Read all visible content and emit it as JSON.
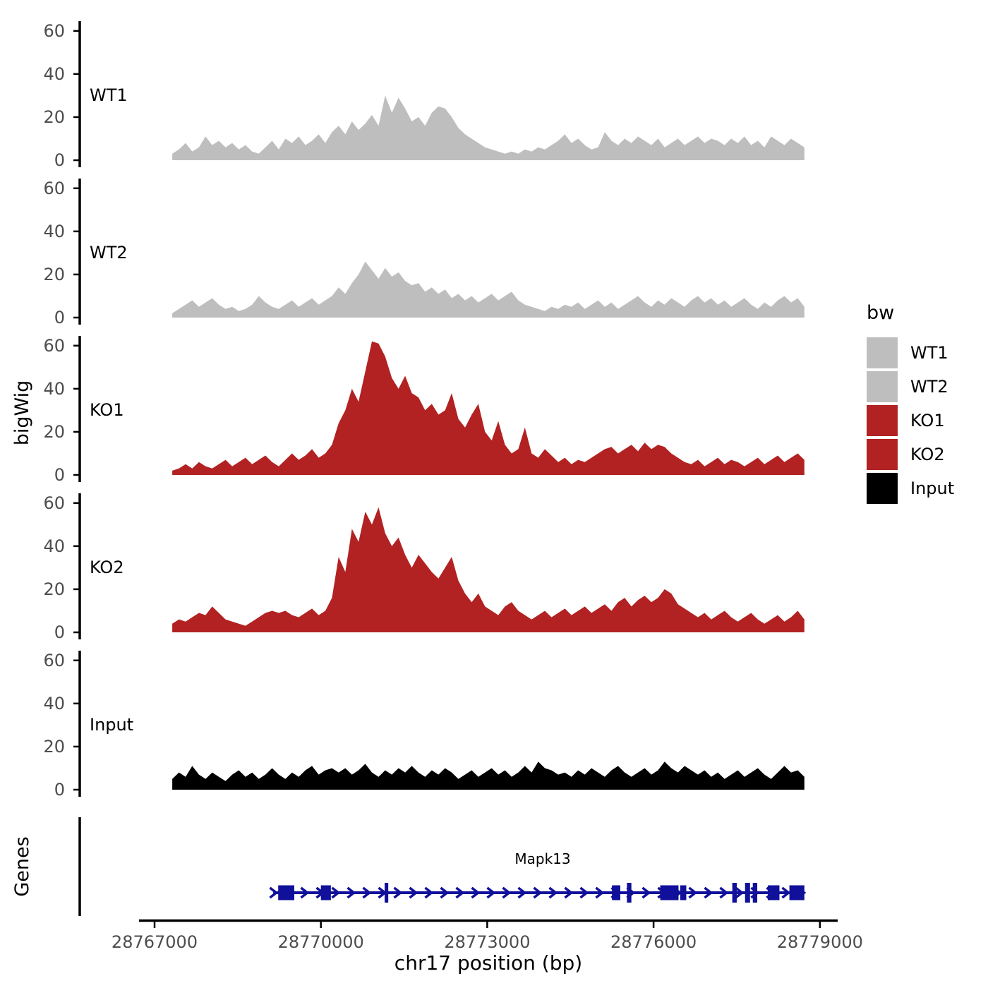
{
  "figure": {
    "y_axis_title": "bigWig",
    "genes_axis_title": "Genes",
    "x_axis_title": "chr17 position (bp)"
  },
  "legend": {
    "title": "bw",
    "items": [
      {
        "label": "WT1",
        "color": "#BEBEBE"
      },
      {
        "label": "WT2",
        "color": "#BEBEBE"
      },
      {
        "label": "KO1",
        "color": "#B22222"
      },
      {
        "label": "KO2",
        "color": "#B22222"
      },
      {
        "label": "Input",
        "color": "#000000"
      }
    ]
  },
  "chart_data": {
    "type": "area",
    "title": "",
    "xlabel": "chr17 position (bp)",
    "ylabel": "bigWig",
    "x_axis": {
      "chrom": "chr17",
      "start_bp": 28767320,
      "step_bp": 120,
      "n_points": 96,
      "ticks": [
        28767000,
        28770000,
        28773000,
        28776000,
        28779000
      ],
      "tick_labels": [
        "28767000",
        "28770000",
        "28773000",
        "28776000",
        "28779000"
      ],
      "range": [
        28766700,
        28779300
      ]
    },
    "y_axis": {
      "ticks": [
        0,
        20,
        40,
        60
      ],
      "tick_labels": [
        "0",
        "20",
        "40",
        "60"
      ],
      "ylim": [
        0,
        64
      ]
    },
    "series": [
      {
        "name": "WT1",
        "color": "#BEBEBE",
        "values": [
          3,
          5,
          8,
          4,
          6,
          11,
          7,
          9,
          6,
          8,
          5,
          7,
          4,
          3,
          6,
          9,
          5,
          10,
          8,
          11,
          7,
          9,
          12,
          8,
          13,
          16,
          12,
          18,
          14,
          17,
          21,
          16,
          30,
          22,
          29,
          24,
          18,
          20,
          16,
          22,
          25,
          24,
          20,
          15,
          12,
          10,
          8,
          6,
          5,
          4,
          3,
          4,
          3,
          5,
          4,
          6,
          5,
          7,
          9,
          12,
          8,
          10,
          7,
          5,
          6,
          13,
          9,
          7,
          10,
          8,
          11,
          9,
          7,
          10,
          6,
          8,
          10,
          7,
          9,
          11,
          8,
          10,
          9,
          7,
          10,
          8,
          11,
          7,
          9,
          6,
          11,
          9,
          7,
          10,
          8,
          6
        ]
      },
      {
        "name": "WT2",
        "color": "#BEBEBE",
        "values": [
          2,
          4,
          6,
          8,
          5,
          7,
          9,
          6,
          4,
          5,
          3,
          4,
          6,
          10,
          7,
          5,
          4,
          6,
          8,
          5,
          7,
          9,
          6,
          8,
          10,
          14,
          11,
          16,
          20,
          26,
          22,
          18,
          23,
          19,
          21,
          17,
          15,
          16,
          12,
          14,
          11,
          13,
          9,
          11,
          8,
          10,
          7,
          9,
          11,
          8,
          10,
          12,
          8,
          6,
          5,
          4,
          3,
          5,
          4,
          6,
          5,
          7,
          4,
          6,
          8,
          5,
          7,
          4,
          6,
          8,
          10,
          7,
          5,
          8,
          6,
          9,
          7,
          5,
          8,
          10,
          7,
          9,
          6,
          8,
          5,
          7,
          9,
          6,
          4,
          7,
          5,
          8,
          10,
          7,
          9,
          5
        ]
      },
      {
        "name": "KO1",
        "color": "#B22222",
        "values": [
          2,
          3,
          5,
          3,
          6,
          4,
          3,
          5,
          7,
          4,
          6,
          8,
          5,
          7,
          9,
          6,
          4,
          7,
          10,
          7,
          9,
          12,
          8,
          10,
          14,
          24,
          30,
          40,
          34,
          48,
          62,
          61,
          55,
          45,
          40,
          46,
          38,
          36,
          30,
          33,
          28,
          30,
          38,
          26,
          22,
          28,
          33,
          20,
          16,
          25,
          14,
          10,
          12,
          22,
          10,
          8,
          12,
          9,
          6,
          8,
          5,
          7,
          6,
          8,
          10,
          12,
          13,
          10,
          12,
          14,
          11,
          15,
          12,
          14,
          13,
          10,
          8,
          6,
          5,
          7,
          4,
          6,
          8,
          5,
          7,
          6,
          4,
          6,
          8,
          5,
          7,
          9,
          6,
          8,
          10,
          7
        ]
      },
      {
        "name": "KO2",
        "color": "#B22222",
        "values": [
          4,
          6,
          5,
          7,
          9,
          8,
          12,
          9,
          6,
          5,
          4,
          3,
          5,
          7,
          9,
          10,
          9,
          10,
          8,
          7,
          9,
          11,
          8,
          10,
          16,
          35,
          28,
          48,
          42,
          56,
          50,
          58,
          46,
          40,
          44,
          36,
          30,
          36,
          32,
          28,
          25,
          30,
          35,
          24,
          18,
          14,
          18,
          12,
          10,
          8,
          12,
          14,
          10,
          8,
          6,
          8,
          10,
          7,
          9,
          11,
          8,
          10,
          12,
          9,
          11,
          13,
          10,
          14,
          16,
          12,
          15,
          17,
          14,
          16,
          20,
          18,
          13,
          11,
          9,
          7,
          9,
          6,
          8,
          10,
          7,
          5,
          7,
          9,
          6,
          4,
          6,
          8,
          5,
          7,
          10,
          6
        ]
      },
      {
        "name": "Input",
        "color": "#000000",
        "values": [
          5,
          8,
          6,
          11,
          7,
          5,
          8,
          6,
          4,
          7,
          9,
          6,
          8,
          5,
          7,
          10,
          7,
          5,
          8,
          6,
          9,
          11,
          7,
          9,
          10,
          8,
          10,
          7,
          9,
          12,
          8,
          6,
          9,
          7,
          10,
          8,
          11,
          8,
          6,
          9,
          7,
          10,
          8,
          5,
          7,
          9,
          6,
          8,
          10,
          7,
          9,
          6,
          8,
          11,
          8,
          13,
          10,
          9,
          7,
          8,
          6,
          9,
          7,
          10,
          8,
          6,
          9,
          11,
          8,
          6,
          8,
          10,
          7,
          9,
          13,
          10,
          8,
          11,
          9,
          7,
          9,
          6,
          8,
          5,
          7,
          9,
          6,
          8,
          10,
          7,
          5,
          8,
          11,
          8,
          9,
          6
        ]
      }
    ],
    "gene_track": {
      "label": "Genes",
      "gene": {
        "name": "Mapk13",
        "chrom": "chr17",
        "start": 28769140,
        "end": 28778720,
        "strand": "+",
        "color": "#10109A",
        "exons": [
          [
            28769230,
            28769520,
            0
          ],
          [
            28770000,
            28770180,
            0
          ],
          [
            28771150,
            28771215,
            1
          ],
          [
            28775250,
            28775400,
            0
          ],
          [
            28775520,
            28775600,
            1
          ],
          [
            28776120,
            28776450,
            0
          ],
          [
            28776480,
            28776590,
            0
          ],
          [
            28777420,
            28777500,
            1
          ],
          [
            28777650,
            28777740,
            1
          ],
          [
            28777790,
            28777870,
            1
          ],
          [
            28778060,
            28778270,
            0
          ],
          [
            28778450,
            28778720,
            0
          ]
        ]
      }
    }
  }
}
